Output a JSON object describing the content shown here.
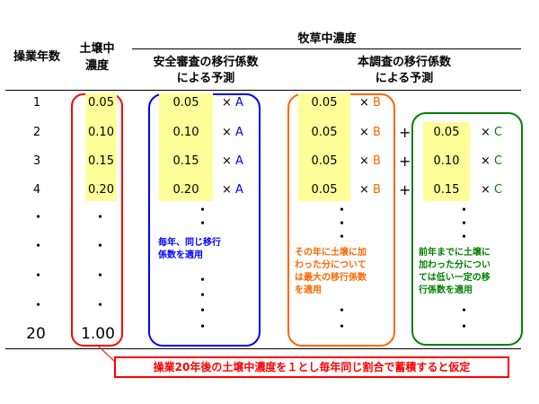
{
  "header": {
    "years_label": "操業年数",
    "soil_label_1": "土壌中",
    "soil_label_2": "濃度",
    "pasture_label": "牧草中濃度",
    "safety_label_1": "安全審査の移行係数",
    "safety_label_2": "による予測",
    "main_label_1": "本調査の移行係数",
    "main_label_2": "による予測"
  },
  "rows": [
    {
      "year": "1",
      "soil": "0.05",
      "safety": "0.05",
      "safety_mul": "×",
      "safety_letter": "A",
      "b_val": "0.05",
      "b_mul": "×",
      "b_letter": "B",
      "plus": "",
      "c_val": "",
      "c_mul": "",
      "c_letter": ""
    },
    {
      "year": "2",
      "soil": "0.10",
      "safety": "0.10",
      "safety_mul": "×",
      "safety_letter": "A",
      "b_val": "0.05",
      "b_mul": "×",
      "b_letter": "B",
      "plus": "+",
      "c_val": "0.05",
      "c_mul": "×",
      "c_letter": "C"
    },
    {
      "year": "3",
      "soil": "0.15",
      "safety": "0.15",
      "safety_mul": "×",
      "safety_letter": "A",
      "b_val": "0.05",
      "b_mul": "×",
      "b_letter": "B",
      "plus": "+",
      "c_val": "0.10",
      "c_mul": "×",
      "c_letter": "C"
    },
    {
      "year": "4",
      "soil": "0.20",
      "safety": "0.20",
      "safety_mul": "×",
      "safety_letter": "A",
      "b_val": "0.05",
      "b_mul": "×",
      "b_letter": "B",
      "plus": "+",
      "c_val": "0.15",
      "c_mul": "×",
      "c_letter": "C"
    }
  ],
  "last_row": {
    "year": "20",
    "soil": "1.00"
  },
  "ellipsis": "・",
  "notes": {
    "a_note": "毎年、同じ移行\n係数を適用",
    "b_note": "その年に土壌に加\nわった分について\nは最大の移行係数\nを適用",
    "c_note": "前年までに土壌に\n加わった分につい\nては低い一定の移\n行係数を適用"
  },
  "callout": "操業20年後の土壌中濃度を１とし毎年同じ割合で蓄積すると仮定",
  "colors": {
    "red": "#ff0000",
    "blue": "#0000ff",
    "orange": "#ff6600",
    "green": "#008000",
    "yellow": "#ffff99"
  }
}
